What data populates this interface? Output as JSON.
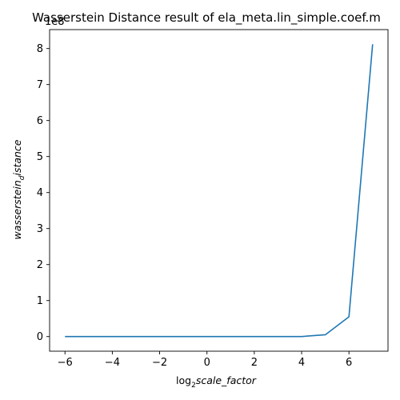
{
  "chart_data": {
    "type": "line",
    "title": "Wasserstein Distance result of ela_meta.lin_simple.coef.m",
    "xlabel_prefix": "log",
    "xlabel_sub": "2",
    "xlabel_main": "scale_factor",
    "ylabel_main": "wasserstein",
    "ylabel_sub": "d",
    "ylabel_tail": "istance",
    "offset_text": "1e8",
    "x": [
      -6,
      -5,
      -4,
      -3,
      -2,
      -1,
      0,
      1,
      2,
      3,
      4,
      5,
      6,
      7
    ],
    "y": [
      0,
      0,
      0,
      0,
      0,
      0,
      0,
      0,
      0,
      0,
      0.002,
      0.05,
      0.55,
      8.12
    ],
    "y_scale_exponent": 8,
    "xlim": [
      -6.65,
      7.65
    ],
    "ylim": [
      -0.406,
      8.526
    ],
    "xticks": [
      -6,
      -4,
      -2,
      0,
      2,
      4,
      6
    ],
    "yticks": [
      0,
      1,
      2,
      3,
      4,
      5,
      6,
      7,
      8
    ],
    "line_color": "#1f77b4",
    "grid": false
  }
}
